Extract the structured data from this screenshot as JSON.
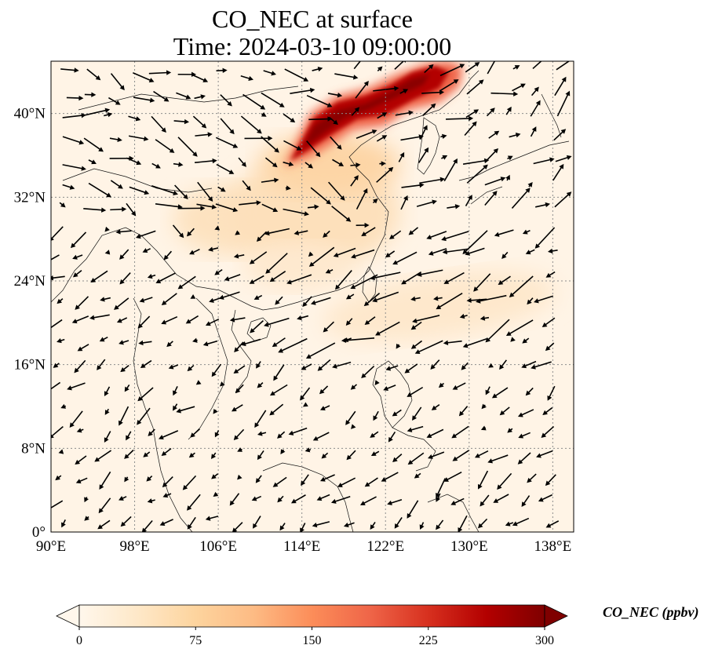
{
  "title_line1": "CO_NEC at surface",
  "title_line2": "Time: 2024-03-10 09:00:00",
  "map": {
    "extent": {
      "lon_min": 90,
      "lon_max": 140,
      "lat_min": 0,
      "lat_max": 45
    },
    "lon_ticks": [
      {
        "value": 90,
        "label": "90°E"
      },
      {
        "value": 98,
        "label": "98°E"
      },
      {
        "value": 106,
        "label": "106°E"
      },
      {
        "value": 114,
        "label": "114°E"
      },
      {
        "value": 122,
        "label": "122°E"
      },
      {
        "value": 130,
        "label": "130°E"
      },
      {
        "value": 138,
        "label": "138°E"
      }
    ],
    "lat_ticks": [
      {
        "value": 0,
        "label": "0°"
      },
      {
        "value": 8,
        "label": "8°N"
      },
      {
        "value": 16,
        "label": "16°N"
      },
      {
        "value": 24,
        "label": "24°N"
      },
      {
        "value": 32,
        "label": "32°N"
      },
      {
        "value": 40,
        "label": "40°N"
      }
    ],
    "gridlines": true,
    "wind_vectors": true,
    "high_concentration_region": "North China Plain to Northeast China (~116–126°E, 35–44°N)"
  },
  "colorbar": {
    "label": "CO_NEC (ppbv)",
    "min": 0,
    "max": 300,
    "extend": "both",
    "ticks": [
      "0",
      "75",
      "150",
      "225",
      "300"
    ],
    "colormap": "OrRd",
    "colors": [
      "#fff7ec",
      "#fee8c8",
      "#fdd49e",
      "#fdbb84",
      "#fc8d59",
      "#ef6548",
      "#d7301f",
      "#b30000",
      "#7f0000"
    ]
  }
}
